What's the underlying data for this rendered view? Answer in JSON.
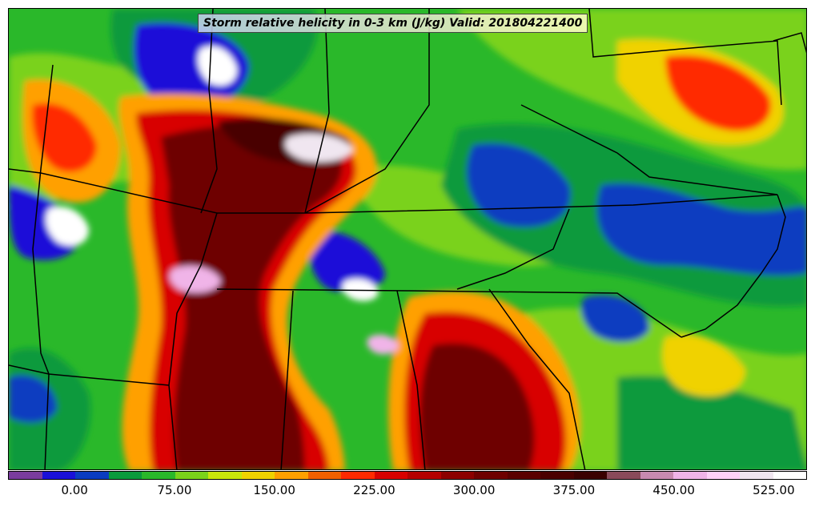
{
  "title": "Storm relative helicity in 0-3 km (J/kg) Valid: 201804221400",
  "colorbar": {
    "colors": [
      "#7a3c9e",
      "#1a10d8",
      "#0a3cc0",
      "#0a9a3c",
      "#2ab82a",
      "#7ad21a",
      "#c8e60a",
      "#f0d200",
      "#ffa000",
      "#f06000",
      "#ff2a00",
      "#d80000",
      "#b40000",
      "#8c0000",
      "#6e0000",
      "#5a0000",
      "#4a0000",
      "#3a0000",
      "#8a4a5a",
      "#c88ab0",
      "#f0b4e8",
      "#ffd2f8",
      "#f0e6f0",
      "#ffffff"
    ],
    "labels": [
      "0.00",
      "75.00",
      "150.00",
      "225.00",
      "300.00",
      "375.00",
      "450.00",
      "525.00"
    ],
    "min": -50,
    "max": 550,
    "label_values": [
      0,
      75,
      150,
      225,
      300,
      375,
      450,
      525
    ]
  },
  "field_colors": {
    "purple": "#7a3c9e",
    "blue": "#1a10d8",
    "darkblue": "#0a3cc0",
    "green": "#0a9a3c",
    "lightgreen": "#2ab82a",
    "yellowgreen": "#c8e60a",
    "yellow": "#f0d200",
    "orange": "#ffa000",
    "red": "#ff2a00",
    "darkred": "#b40000",
    "maroon": "#6e0000",
    "pink": "#f0b4e8",
    "white": "#ffffff"
  }
}
